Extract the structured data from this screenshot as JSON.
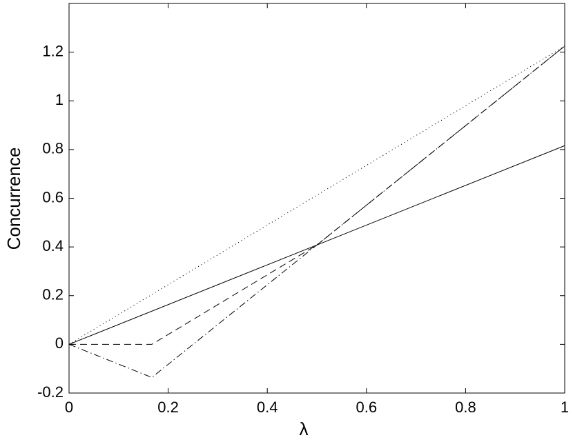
{
  "chart_data": {
    "type": "line",
    "xlabel": "λ",
    "ylabel": "Concurrence",
    "xlim": [
      0,
      1
    ],
    "ylim": [
      -0.2,
      1.4
    ],
    "xticks": [
      0,
      0.2,
      0.4,
      0.6,
      0.8,
      1
    ],
    "yticks": [
      -0.2,
      0,
      0.2,
      0.4,
      0.6,
      0.8,
      1,
      1.2
    ],
    "grid": false,
    "series": [
      {
        "color": "#000000",
        "dash": "solid",
        "x": [
          0,
          1
        ],
        "values": [
          0,
          0.816
        ]
      },
      {
        "color": "#000000",
        "dash": "dotted",
        "x": [
          0,
          1
        ],
        "values": [
          0,
          1.225
        ]
      },
      {
        "color": "#000000",
        "dash": "dashed",
        "x": [
          0,
          0.167,
          0.5,
          1
        ],
        "values": [
          0,
          0,
          0.408,
          1.225
        ]
      },
      {
        "color": "#000000",
        "dash": "dashdot",
        "x": [
          0,
          0.167,
          1
        ],
        "values": [
          0,
          -0.136,
          1.225
        ]
      }
    ]
  }
}
